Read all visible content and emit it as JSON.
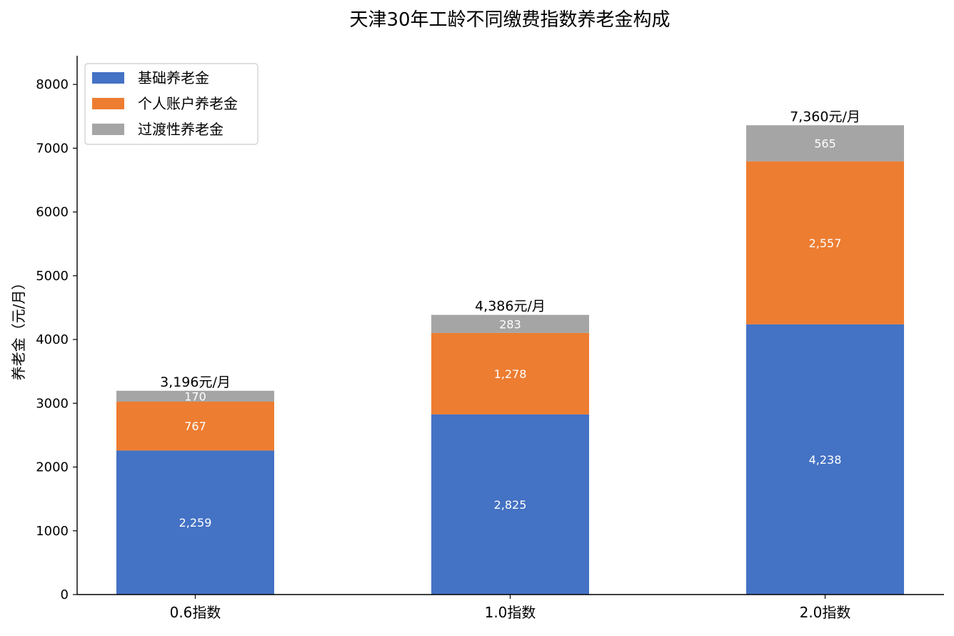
{
  "chart_data": {
    "type": "bar",
    "stacked": true,
    "title": "天津30年工龄不同缴费指数养老金构成",
    "xlabel": "",
    "ylabel": "养老金（元/月）",
    "categories": [
      "0.6指数",
      "1.0指数",
      "2.0指数"
    ],
    "series": [
      {
        "name": "基础养老金",
        "values": [
          2259,
          2825,
          4238
        ],
        "labels": [
          "2,259",
          "2,825",
          "4,238"
        ],
        "color": "#4472C4"
      },
      {
        "name": "个人账户养老金",
        "values": [
          767,
          1278,
          2557
        ],
        "labels": [
          "767",
          "1,278",
          "2,557"
        ],
        "color": "#ED7D31"
      },
      {
        "name": "过渡性养老金",
        "values": [
          170,
          283,
          565
        ],
        "labels": [
          "170",
          "283",
          "565"
        ],
        "color": "#A5A5A5"
      }
    ],
    "totals": [
      "3,196元/月",
      "4,386元/月",
      "7,360元/月"
    ],
    "ylim": [
      0,
      8450
    ],
    "yticks": [
      0,
      1000,
      2000,
      3000,
      4000,
      5000,
      6000,
      7000,
      8000
    ],
    "grid": false,
    "legend_position": "top-left"
  }
}
